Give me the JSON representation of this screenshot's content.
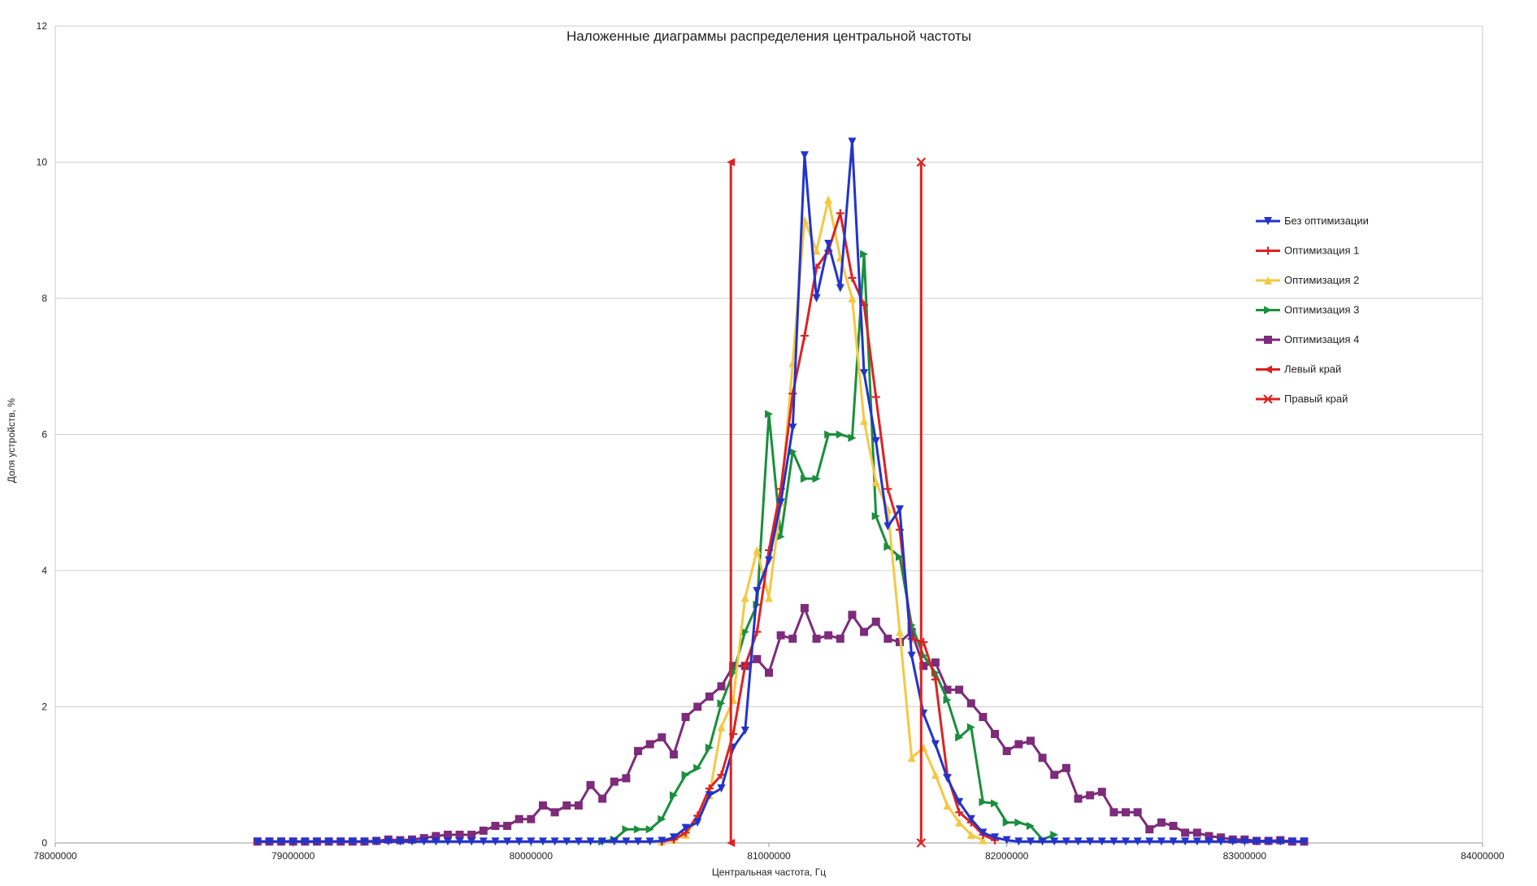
{
  "chart_data": {
    "type": "line",
    "title": "Наложенные диаграммы распределения центральной частоты",
    "xlabel": "Центральная частота, Гц",
    "ylabel": "Доля устройств, %",
    "xlim": [
      78000000,
      84000000
    ],
    "ylim": [
      0,
      12
    ],
    "x_ticks": [
      "78000000",
      "79000000",
      "80000000",
      "81000000",
      "82000000",
      "83000000",
      "84000000"
    ],
    "y_ticks": [
      "0",
      "2",
      "4",
      "6",
      "8",
      "10",
      "12"
    ],
    "grid": "horizontal",
    "legend_position": "right",
    "series": [
      {
        "name": "Без оптимизации",
        "color": "#2233cc",
        "marker": "triangle-down",
        "x": [
          78850000,
          78900000,
          78950000,
          79000000,
          79050000,
          79100000,
          79150000,
          79200000,
          79250000,
          79300000,
          79350000,
          79400000,
          79450000,
          79500000,
          79550000,
          79600000,
          79650000,
          79700000,
          79750000,
          79800000,
          79850000,
          79900000,
          79950000,
          80000000,
          80050000,
          80100000,
          80150000,
          80200000,
          80250000,
          80300000,
          80350000,
          80400000,
          80450000,
          80500000,
          80550000,
          80600000,
          80650000,
          80700000,
          80750000,
          80800000,
          80850000,
          80900000,
          80950000,
          81000000,
          81050000,
          81100000,
          81150000,
          81200000,
          81250000,
          81300000,
          81350000,
          81400000,
          81450000,
          81500000,
          81550000,
          81600000,
          81650000,
          81700000,
          81750000,
          81800000,
          81850000,
          81900000,
          81950000,
          82000000,
          82050000,
          82100000,
          82150000,
          82200000,
          82250000,
          82300000,
          82350000,
          82400000,
          82450000,
          82500000,
          82550000,
          82600000,
          82650000,
          82700000,
          82750000,
          82800000,
          82850000,
          82900000,
          82950000,
          83000000,
          83050000,
          83100000,
          83150000,
          83200000,
          83250000
        ],
        "y": [
          0.02,
          0.02,
          0.02,
          0.02,
          0.02,
          0.02,
          0.02,
          0.02,
          0.02,
          0.02,
          0.02,
          0.02,
          0.02,
          0.02,
          0.02,
          0.02,
          0.02,
          0.02,
          0.02,
          0.02,
          0.02,
          0.02,
          0.02,
          0.02,
          0.02,
          0.02,
          0.02,
          0.02,
          0.02,
          0.02,
          0.02,
          0.02,
          0.02,
          0.02,
          0.03,
          0.08,
          0.22,
          0.3,
          0.7,
          0.8,
          1.4,
          1.65,
          3.7,
          4.15,
          5.0,
          6.1,
          10.1,
          8.0,
          8.8,
          8.15,
          10.3,
          6.9,
          5.9,
          4.65,
          4.9,
          2.75,
          1.9,
          1.45,
          0.95,
          0.6,
          0.35,
          0.15,
          0.08,
          0.04,
          0.02,
          0.02,
          0.02,
          0.02,
          0.02,
          0.02,
          0.02,
          0.02,
          0.02,
          0.02,
          0.02,
          0.02,
          0.02,
          0.02,
          0.02,
          0.02,
          0.02,
          0.02,
          0.02,
          0.02,
          0.02,
          0.02,
          0.02,
          0.02,
          0.02
        ]
      },
      {
        "name": "Оптимизация 1",
        "color": "#dd2222",
        "marker": "cross",
        "x": [
          80550000,
          80600000,
          80650000,
          80700000,
          80750000,
          80800000,
          80850000,
          80900000,
          80950000,
          81000000,
          81050000,
          81100000,
          81150000,
          81200000,
          81250000,
          81300000,
          81350000,
          81400000,
          81450000,
          81500000,
          81550000,
          81600000,
          81650000,
          81700000,
          81750000,
          81800000,
          81850000,
          81900000,
          81950000
        ],
        "y": [
          0.02,
          0.05,
          0.15,
          0.4,
          0.8,
          1.0,
          1.6,
          2.6,
          3.1,
          4.3,
          5.2,
          6.6,
          7.45,
          8.45,
          8.7,
          9.25,
          8.3,
          7.9,
          6.55,
          5.2,
          4.6,
          3.0,
          2.95,
          2.4,
          1.0,
          0.45,
          0.3,
          0.12,
          0.04
        ]
      },
      {
        "name": "Оптимизация 2",
        "color": "#f5c842",
        "marker": "triangle-up",
        "x": [
          80550000,
          80600000,
          80650000,
          80700000,
          80750000,
          80800000,
          80850000,
          80900000,
          80950000,
          81000000,
          81050000,
          81100000,
          81150000,
          81200000,
          81250000,
          81300000,
          81350000,
          81400000,
          81450000,
          81500000,
          81550000,
          81600000,
          81650000,
          81700000,
          81750000,
          81800000,
          81850000,
          81900000
        ],
        "y": [
          0.02,
          0.05,
          0.12,
          0.35,
          0.7,
          1.7,
          2.1,
          3.6,
          4.3,
          3.6,
          5.0,
          7.05,
          9.15,
          8.7,
          9.45,
          8.6,
          8.0,
          6.2,
          5.3,
          4.9,
          3.1,
          1.25,
          1.4,
          1.0,
          0.55,
          0.3,
          0.12,
          0.04
        ]
      },
      {
        "name": "Оптимизация 3",
        "color": "#1a8f3c",
        "marker": "triangle-right",
        "x": [
          80300000,
          80350000,
          80400000,
          80450000,
          80500000,
          80550000,
          80600000,
          80650000,
          80700000,
          80750000,
          80800000,
          80850000,
          80900000,
          80950000,
          81000000,
          81050000,
          81100000,
          81150000,
          81200000,
          81250000,
          81300000,
          81350000,
          81400000,
          81450000,
          81500000,
          81550000,
          81600000,
          81650000,
          81700000,
          81750000,
          81800000,
          81850000,
          81900000,
          81950000,
          82000000,
          82050000,
          82100000,
          82150000,
          82200000
        ],
        "y": [
          0.02,
          0.05,
          0.2,
          0.2,
          0.2,
          0.35,
          0.7,
          1.0,
          1.1,
          1.4,
          2.05,
          2.5,
          3.1,
          3.5,
          6.3,
          4.5,
          5.75,
          5.35,
          5.35,
          6.0,
          6.0,
          5.95,
          8.65,
          4.8,
          4.35,
          4.2,
          3.2,
          2.75,
          2.5,
          2.1,
          1.55,
          1.7,
          0.6,
          0.58,
          0.3,
          0.3,
          0.25,
          0.05,
          0.12
        ]
      },
      {
        "name": "Оптимизация 4",
        "color": "#7d2b7a",
        "marker": "square",
        "x": [
          78850000,
          78900000,
          78950000,
          79000000,
          79050000,
          79100000,
          79150000,
          79200000,
          79250000,
          79300000,
          79350000,
          79400000,
          79450000,
          79500000,
          79550000,
          79600000,
          79650000,
          79700000,
          79750000,
          79800000,
          79850000,
          79900000,
          79950000,
          80000000,
          80050000,
          80100000,
          80150000,
          80200000,
          80250000,
          80300000,
          80350000,
          80400000,
          80450000,
          80500000,
          80550000,
          80600000,
          80650000,
          80700000,
          80750000,
          80800000,
          80850000,
          80900000,
          80950000,
          81000000,
          81050000,
          81100000,
          81150000,
          81200000,
          81250000,
          81300000,
          81350000,
          81400000,
          81450000,
          81500000,
          81550000,
          81600000,
          81650000,
          81700000,
          81750000,
          81800000,
          81850000,
          81900000,
          81950000,
          82000000,
          82050000,
          82100000,
          82150000,
          82200000,
          82250000,
          82300000,
          82350000,
          82400000,
          82450000,
          82500000,
          82550000,
          82600000,
          82650000,
          82700000,
          82750000,
          82800000,
          82850000,
          82900000,
          82950000,
          83000000,
          83050000,
          83100000,
          83150000,
          83200000,
          83250000
        ],
        "y": [
          0.02,
          0.02,
          0.02,
          0.02,
          0.02,
          0.02,
          0.02,
          0.02,
          0.02,
          0.02,
          0.03,
          0.05,
          0.04,
          0.05,
          0.07,
          0.1,
          0.12,
          0.12,
          0.12,
          0.18,
          0.25,
          0.25,
          0.35,
          0.35,
          0.55,
          0.45,
          0.55,
          0.55,
          0.85,
          0.65,
          0.9,
          0.95,
          1.35,
          1.45,
          1.55,
          1.3,
          1.85,
          2.0,
          2.15,
          2.3,
          2.6,
          2.6,
          2.7,
          2.5,
          3.05,
          3.0,
          3.45,
          3.0,
          3.05,
          3.0,
          3.35,
          3.1,
          3.25,
          3.0,
          2.95,
          3.1,
          2.6,
          2.65,
          2.25,
          2.25,
          2.05,
          1.85,
          1.6,
          1.35,
          1.45,
          1.5,
          1.25,
          1.0,
          1.1,
          0.65,
          0.7,
          0.75,
          0.45,
          0.45,
          0.45,
          0.2,
          0.3,
          0.25,
          0.15,
          0.15,
          0.1,
          0.08,
          0.05,
          0.05,
          0.03,
          0.03,
          0.04,
          0.02,
          0.02
        ]
      },
      {
        "name": "Левый край",
        "color": "#dd2222",
        "marker": "triangle-left",
        "x": [
          80840000,
          80840000
        ],
        "y": [
          0,
          10
        ]
      },
      {
        "name": "Правый край",
        "color": "#dd2222",
        "marker": "x",
        "x": [
          81640000,
          81640000
        ],
        "y": [
          0,
          10
        ]
      }
    ]
  }
}
